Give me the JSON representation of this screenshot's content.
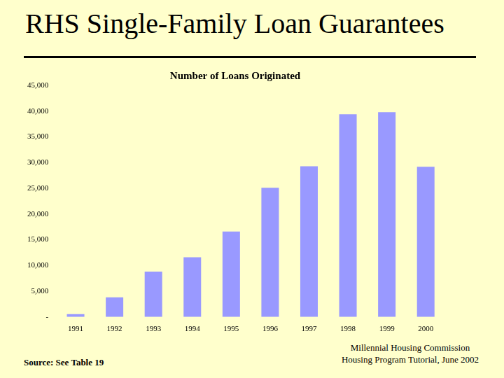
{
  "slide": {
    "title": "RHS Single-Family Loan Guarantees",
    "source": "Source: See Table 19",
    "footer": [
      "Millennial Housing Commission",
      "Housing Program Tutorial, June 2002"
    ]
  },
  "chart_data": {
    "type": "bar",
    "title": "Number of Loans Originated",
    "categories": [
      "1991",
      "1992",
      "1993",
      "1994",
      "1995",
      "1996",
      "1997",
      "1998",
      "1999",
      "2000"
    ],
    "values": [
      560,
      3800,
      8800,
      11600,
      16600,
      25100,
      29300,
      39400,
      39800,
      29200
    ],
    "color": "#9999FF",
    "ylim": [
      0,
      45000
    ],
    "yticks": [
      {
        "value": 0,
        "label": "-"
      },
      {
        "value": 5000,
        "label": "5,000"
      },
      {
        "value": 10000,
        "label": "10,000"
      },
      {
        "value": 15000,
        "label": "15,000"
      },
      {
        "value": 20000,
        "label": "20,000"
      },
      {
        "value": 25000,
        "label": "25,000"
      },
      {
        "value": 30000,
        "label": "30,000"
      },
      {
        "value": 35000,
        "label": "35,000"
      },
      {
        "value": 40000,
        "label": "40,000"
      },
      {
        "value": 45000,
        "label": "45,000"
      }
    ],
    "grid": false
  }
}
